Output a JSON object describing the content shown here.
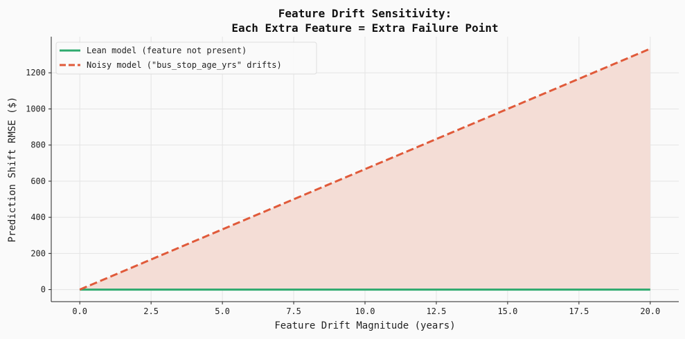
{
  "chart_data": {
    "type": "line",
    "title_lines": [
      "Feature Drift Sensitivity:",
      "Each Extra Feature = Extra Failure Point"
    ],
    "xlabel": "Feature Drift Magnitude (years)",
    "ylabel": "Prediction Shift RMSE ($)",
    "xlim": [
      -1,
      21
    ],
    "ylim": [
      -66.7,
      1400
    ],
    "xticks": [
      0,
      2.5,
      5,
      7.5,
      10,
      12.5,
      15,
      17.5,
      20
    ],
    "xtick_labels": [
      "0.0",
      "2.5",
      "5.0",
      "7.5",
      "10.0",
      "12.5",
      "15.0",
      "17.5",
      "20.0"
    ],
    "yticks": [
      0,
      200,
      400,
      600,
      800,
      1000,
      1200
    ],
    "ytick_labels": [
      "0",
      "200",
      "400",
      "600",
      "800",
      "1000",
      "1200"
    ],
    "grid": true,
    "legend_position": "top-left",
    "fill_between_series": true,
    "fill_color": "#f4ddd6",
    "series": [
      {
        "name": "Lean model (feature not present)",
        "color": "#2eaa6e",
        "style": "solid",
        "x": [
          0,
          20
        ],
        "y": [
          0,
          0
        ]
      },
      {
        "name": "Noisy model (\"bus_stop_age_yrs\" drifts)",
        "color": "#e05a3a",
        "style": "dashed",
        "x": [
          0,
          20
        ],
        "y": [
          0,
          1333.3
        ]
      }
    ]
  }
}
